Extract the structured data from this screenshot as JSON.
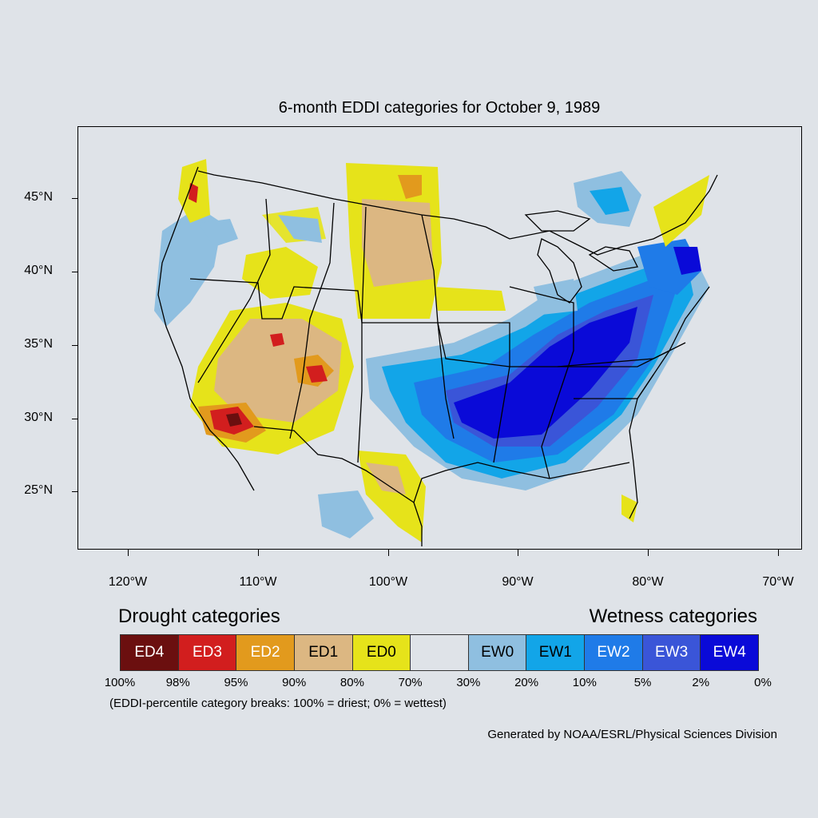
{
  "title": "6-month EDDI categories for October 9, 1989",
  "axes": {
    "lat_labels": [
      "45°N",
      "40°N",
      "35°N",
      "30°N",
      "25°N"
    ],
    "lon_labels": [
      "120°W",
      "110°W",
      "100°W",
      "90°W",
      "80°W",
      "70°W"
    ]
  },
  "legend": {
    "drought_heading": "Drought categories",
    "wetness_heading": "Wetness categories",
    "categories": [
      {
        "label": "ED4",
        "color": "#6b0f0f",
        "text_color": "#ffffff"
      },
      {
        "label": "ED3",
        "color": "#d21e1e",
        "text_color": "#ffffff"
      },
      {
        "label": "ED2",
        "color": "#e29a1d",
        "text_color": "#ffffff"
      },
      {
        "label": "ED1",
        "color": "#dcb782",
        "text_color": "#000000"
      },
      {
        "label": "ED0",
        "color": "#e6e31a",
        "text_color": "#000000"
      },
      {
        "label": "",
        "color": "#dfe3e8",
        "text_color": "#000000"
      },
      {
        "label": "EW0",
        "color": "#8fbfe0",
        "text_color": "#000000"
      },
      {
        "label": "EW1",
        "color": "#12a5e8",
        "text_color": "#000000"
      },
      {
        "label": "EW2",
        "color": "#1f7be8",
        "text_color": "#ffffff"
      },
      {
        "label": "EW3",
        "color": "#3a55d8",
        "text_color": "#ffffff"
      },
      {
        "label": "EW4",
        "color": "#0a0ad8",
        "text_color": "#ffffff"
      }
    ],
    "percent_breaks": [
      "100%",
      "98%",
      "95%",
      "90%",
      "80%",
      "70%",
      "30%",
      "20%",
      "10%",
      "5%",
      "2%",
      "0%"
    ],
    "note": "(EDDI-percentile category breaks: 100% = driest; 0% = wettest)"
  },
  "credit": "Generated by NOAA/ESRL/Physical Sciences Division"
}
